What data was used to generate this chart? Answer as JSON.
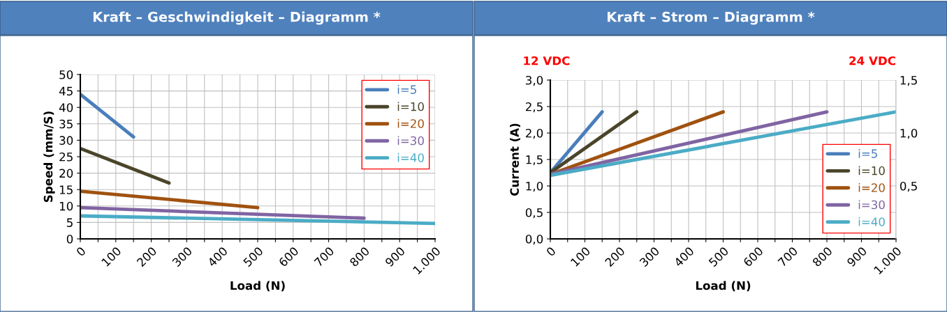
{
  "chart_data": [
    {
      "type": "line",
      "title": "Kraft – Geschwindigkeit – Diagramm *",
      "xlabel": "Load (N)",
      "ylabel": "Speed (mm/S)",
      "series": [
        {
          "name": "i=5",
          "color": "#4a7ebb",
          "x": [
            0,
            150
          ],
          "values": [
            44,
            31
          ]
        },
        {
          "name": "i=10",
          "color": "#4a452a",
          "x": [
            0,
            250
          ],
          "values": [
            27.5,
            17
          ]
        },
        {
          "name": "i=20",
          "color": "#a0520f",
          "x": [
            0,
            500
          ],
          "values": [
            14.5,
            9.5
          ]
        },
        {
          "name": "i=30",
          "color": "#8064a2",
          "x": [
            0,
            800
          ],
          "values": [
            9.5,
            6.3
          ]
        },
        {
          "name": "i=40",
          "color": "#4bacc6",
          "x": [
            0,
            1000
          ],
          "values": [
            7,
            4.7
          ]
        }
      ],
      "xlim": [
        0,
        1000
      ],
      "xticks": [
        0,
        {
          "value": 50,
          "label": null
        },
        100,
        {
          "value": 150,
          "label": null
        },
        200,
        {
          "value": 250,
          "label": null
        },
        300,
        {
          "value": 350,
          "label": null
        },
        400,
        {
          "value": 450,
          "label": null
        },
        500,
        {
          "value": 550,
          "label": null
        },
        600,
        {
          "value": 650,
          "label": null
        },
        700,
        {
          "value": 750,
          "label": null
        },
        800,
        {
          "value": 850,
          "label": null
        },
        900,
        {
          "value": 950,
          "label": null
        },
        {
          "value": 1000,
          "label": "1.000"
        }
      ],
      "ylim": [
        0,
        50
      ],
      "yticks": [
        0,
        5,
        10,
        15,
        20,
        25,
        30,
        35,
        40,
        45,
        50
      ],
      "grid": true,
      "legend": "top right",
      "marker": "none",
      "line_style": "solid"
    },
    {
      "type": "line",
      "title": "Kraft – Strom – Diagramm *",
      "xlabel": "Load (N)",
      "ylabel": "Current (A)",
      "annotations": [
        "12 VDC",
        "24 VDC"
      ],
      "series": [
        {
          "name": "i=5",
          "color": "#4a7ebb",
          "x": [
            0,
            150
          ],
          "values": [
            1.25,
            2.4
          ]
        },
        {
          "name": "i=10",
          "color": "#4a452a",
          "x": [
            0,
            250
          ],
          "values": [
            1.25,
            2.4
          ]
        },
        {
          "name": "i=20",
          "color": "#a0520f",
          "x": [
            0,
            500
          ],
          "values": [
            1.22,
            2.4
          ]
        },
        {
          "name": "i=30",
          "color": "#8064a2",
          "x": [
            0,
            800
          ],
          "values": [
            1.22,
            2.4
          ]
        },
        {
          "name": "i=40",
          "color": "#4bacc6",
          "x": [
            0,
            1000
          ],
          "values": [
            1.2,
            2.4
          ]
        }
      ],
      "xlim": [
        0,
        1000
      ],
      "xticks": [
        0,
        {
          "value": 50,
          "label": null
        },
        100,
        {
          "value": 150,
          "label": null
        },
        200,
        {
          "value": 250,
          "label": null
        },
        300,
        {
          "value": 350,
          "label": null
        },
        400,
        {
          "value": 450,
          "label": null
        },
        500,
        {
          "value": 550,
          "label": null
        },
        600,
        {
          "value": 650,
          "label": null
        },
        700,
        {
          "value": 750,
          "label": null
        },
        800,
        {
          "value": 850,
          "label": null
        },
        900,
        {
          "value": 950,
          "label": null
        },
        {
          "value": 1000,
          "label": "1.000"
        }
      ],
      "ylim": [
        0,
        3
      ],
      "yticks": [
        {
          "value": 0,
          "label": "0,0"
        },
        {
          "value": 0.5,
          "label": "0,5"
        },
        {
          "value": 1,
          "label": "1,0"
        },
        {
          "value": 1.5,
          "label": "1,5"
        },
        {
          "value": 2,
          "label": "2,0"
        },
        {
          "value": 2.5,
          "label": "2,5"
        },
        {
          "value": 3,
          "label": "3,0"
        }
      ],
      "y2lim": [
        0,
        1.5
      ],
      "y2ticks": [
        {
          "value": 0.5,
          "label": "0,5"
        },
        {
          "value": 1,
          "label": "1,0"
        },
        {
          "value": 1.5,
          "label": "1,5"
        }
      ],
      "grid": true,
      "legend": "bottom right",
      "marker": "none",
      "line_style": "solid"
    }
  ]
}
